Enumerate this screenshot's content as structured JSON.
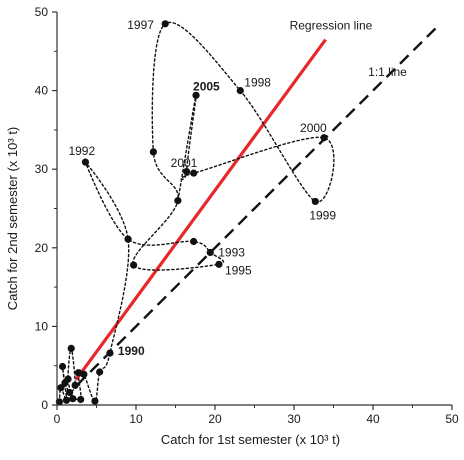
{
  "chart_data": {
    "type": "scatter",
    "xlabel": "Catch for 1st semester (x 10³ t)",
    "ylabel": "Catch for 2nd semester (x 10³ t)",
    "xlim": [
      0,
      50
    ],
    "ylim": [
      0,
      50
    ],
    "xticks": [
      "0",
      "10",
      "20",
      "30",
      "40",
      "50"
    ],
    "yticks": [
      "0",
      "10",
      "20",
      "30",
      "40",
      "50"
    ],
    "grid": false,
    "legend": "none",
    "points": [
      {
        "x": 0.3,
        "y": 0.4
      },
      {
        "x": 0.5,
        "y": 2.2
      },
      {
        "x": 0.7,
        "y": 4.9
      },
      {
        "x": 1.0,
        "y": 2.8
      },
      {
        "x": 1.2,
        "y": 0.6
      },
      {
        "x": 1.4,
        "y": 3.3
      },
      {
        "x": 1.6,
        "y": 1.6
      },
      {
        "x": 1.8,
        "y": 7.2
      },
      {
        "x": 2.0,
        "y": 0.8
      },
      {
        "x": 2.3,
        "y": 2.5
      },
      {
        "x": 2.7,
        "y": 4.1
      },
      {
        "x": 3.0,
        "y": 0.7
      },
      {
        "x": 3.4,
        "y": 3.9
      },
      {
        "x": 4.8,
        "y": 0.5
      },
      {
        "x": 5.4,
        "y": 4.2
      },
      {
        "x": 6.7,
        "y": 6.6
      },
      {
        "x": 9.0,
        "y": 21.1
      },
      {
        "x": 9.7,
        "y": 17.8
      },
      {
        "x": 3.6,
        "y": 30.9
      },
      {
        "x": 13.7,
        "y": 48.5
      },
      {
        "x": 17.6,
        "y": 39.4
      },
      {
        "x": 23.2,
        "y": 40.0
      },
      {
        "x": 12.2,
        "y": 32.2
      },
      {
        "x": 16.4,
        "y": 29.7
      },
      {
        "x": 15.3,
        "y": 26.0
      },
      {
        "x": 17.3,
        "y": 29.5
      },
      {
        "x": 17.3,
        "y": 20.8
      },
      {
        "x": 19.4,
        "y": 19.4
      },
      {
        "x": 20.5,
        "y": 17.9
      },
      {
        "x": 33.8,
        "y": 34.0
      },
      {
        "x": 32.7,
        "y": 25.9
      }
    ],
    "trajectory_x": [
      0.3,
      0.5,
      1.2,
      0.7,
      1.0,
      2.0,
      1.4,
      1.8,
      2.3,
      1.6,
      3.0,
      2.7,
      3.4,
      4.8,
      5.4,
      6.7,
      9.0,
      3.6,
      9.0,
      17.3,
      19.4,
      20.5,
      9.7,
      15.3,
      12.2,
      13.7,
      23.2,
      32.7,
      33.8,
      17.3,
      16.4,
      17.6,
      15.3
    ],
    "trajectory_y": [
      0.4,
      2.2,
      0.6,
      4.9,
      2.8,
      0.8,
      3.3,
      7.2,
      2.5,
      1.6,
      0.7,
      4.1,
      3.9,
      0.5,
      4.2,
      6.6,
      21.1,
      30.9,
      21.1,
      20.8,
      19.4,
      17.9,
      17.8,
      26.0,
      32.2,
      48.5,
      40.0,
      25.9,
      34.0,
      29.5,
      29.7,
      39.4,
      26.0
    ],
    "regression_line": {
      "name": "Regression line",
      "x": [
        2.4,
        34.0
      ],
      "y": [
        3.2,
        46.5
      ]
    },
    "identity_line": {
      "name": "1:1 line",
      "x": [
        2.5,
        48.5
      ],
      "y": [
        2.5,
        48.5
      ]
    },
    "annotations": [
      {
        "text": "1997",
        "x": 13.7,
        "y": 48.5
      },
      {
        "text": "2005",
        "x": 17.6,
        "y": 39.4,
        "bold": true
      },
      {
        "text": "1998",
        "x": 23.2,
        "y": 40.0
      },
      {
        "text": "2000",
        "x": 33.8,
        "y": 34.0
      },
      {
        "text": "1992",
        "x": 3.6,
        "y": 30.9
      },
      {
        "text": "2001",
        "x": 17.3,
        "y": 29.5
      },
      {
        "text": "1999",
        "x": 32.7,
        "y": 25.9
      },
      {
        "text": "1993",
        "x": 19.4,
        "y": 19.4
      },
      {
        "text": "1995",
        "x": 20.5,
        "y": 17.9
      },
      {
        "text": "1990",
        "x": 6.7,
        "y": 6.6,
        "bold": true
      }
    ],
    "colors": {
      "regression": "#e8272b",
      "identity": "#111111",
      "points": "#111111",
      "trajectory": "#111111",
      "axes": "#333333"
    }
  }
}
